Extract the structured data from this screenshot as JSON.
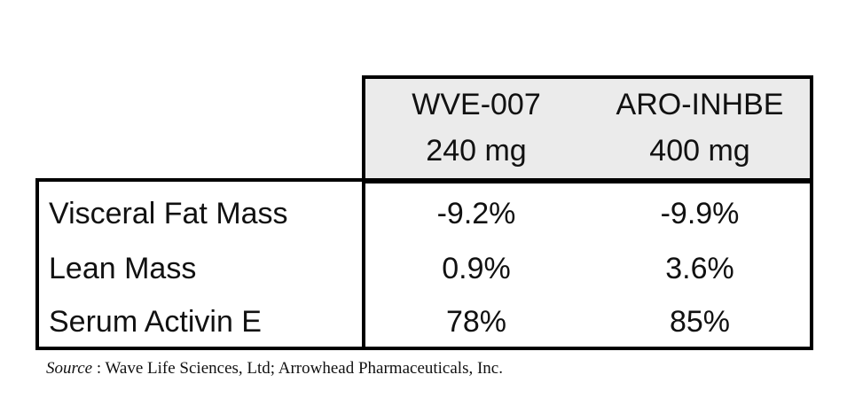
{
  "table": {
    "header": [
      [
        "WVE-007",
        "240 mg"
      ],
      [
        "ARO-INHBE",
        "400 mg"
      ]
    ],
    "rows": [
      [
        "Visceral Fat Mass",
        "-9.2%",
        "-9.9%"
      ],
      [
        "Lean Mass",
        "0.9%",
        "3.6%"
      ],
      [
        "Serum Activin E",
        "78%",
        "85%"
      ]
    ]
  },
  "source": {
    "label": "Source",
    "text": ": Wave Life Sciences, Ltd; Arrowhead Pharmaceuticals, Inc."
  }
}
